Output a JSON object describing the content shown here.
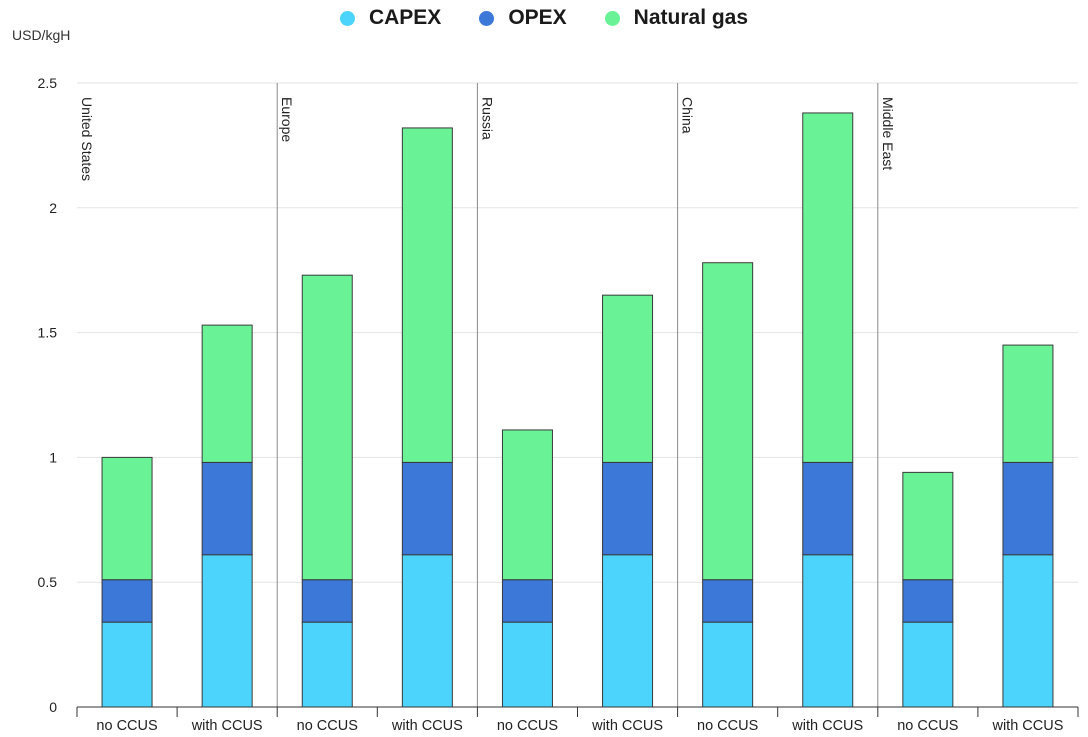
{
  "chart_data": {
    "type": "bar",
    "stacked": true,
    "ylabel": "USD/kgH",
    "ylim": [
      0,
      2.5
    ],
    "yticks": [
      "0",
      "0.5",
      "1",
      "1.5",
      "2",
      "2.5"
    ],
    "grid": true,
    "legend_position": "top-center",
    "regions": [
      "United States",
      "Europe",
      "Russia",
      "China",
      "Middle East"
    ],
    "categories": [
      "no CCUS",
      "with CCUS",
      "no CCUS",
      "with CCUS",
      "no CCUS",
      "with CCUS",
      "no CCUS",
      "with CCUS",
      "no CCUS",
      "with CCUS"
    ],
    "series": [
      {
        "name": "CAPEX",
        "color": "#4dd4fc",
        "values": [
          0.34,
          0.61,
          0.34,
          0.61,
          0.34,
          0.61,
          0.34,
          0.61,
          0.34,
          0.61
        ]
      },
      {
        "name": "OPEX",
        "color": "#3b78d8",
        "values": [
          0.17,
          0.37,
          0.17,
          0.37,
          0.17,
          0.37,
          0.17,
          0.37,
          0.17,
          0.37
        ]
      },
      {
        "name": "Natural gas",
        "color": "#6af296",
        "values": [
          0.49,
          0.55,
          1.22,
          1.34,
          0.6,
          0.67,
          1.27,
          1.4,
          0.43,
          0.47
        ]
      }
    ]
  }
}
